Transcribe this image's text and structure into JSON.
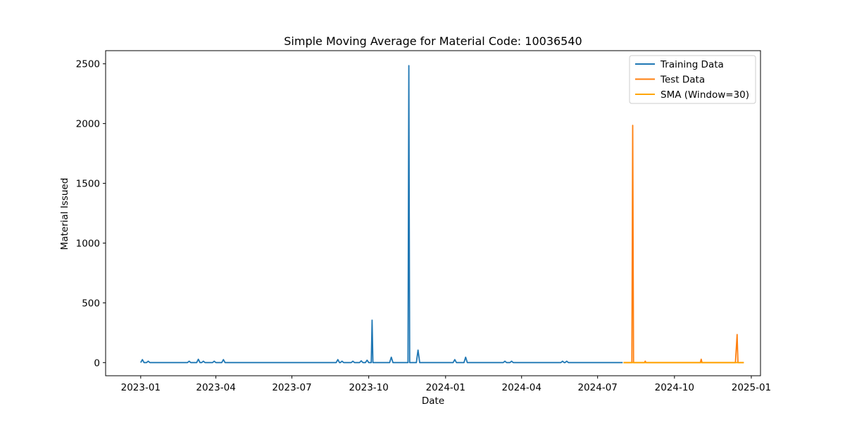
{
  "chart_data": {
    "type": "line",
    "title": "Simple Moving Average for Material Code: 10036540",
    "xlabel": "Date",
    "ylabel": "Material Issued",
    "xlim": [
      "2022-11-20",
      "2025-01-12"
    ],
    "ylim": [
      -110,
      2610
    ],
    "x_ticks": [
      "2023-01",
      "2023-04",
      "2023-07",
      "2023-10",
      "2024-01",
      "2024-04",
      "2024-07",
      "2024-10",
      "2025-01"
    ],
    "y_ticks": [
      0,
      500,
      1000,
      1500,
      2000,
      2500
    ],
    "grid": false,
    "legend": {
      "placement": "upper-right",
      "entries": [
        "Training Data",
        "Test Data",
        "SMA (Window=30)"
      ]
    },
    "series": [
      {
        "name": "Training Data",
        "color": "#1f77b4",
        "points": [
          [
            "2023-01-01",
            0
          ],
          [
            "2023-01-03",
            25
          ],
          [
            "2023-01-05",
            0
          ],
          [
            "2023-01-08",
            0
          ],
          [
            "2023-01-10",
            12
          ],
          [
            "2023-01-12",
            0
          ],
          [
            "2023-02-26",
            0
          ],
          [
            "2023-02-28",
            12
          ],
          [
            "2023-03-02",
            0
          ],
          [
            "2023-03-09",
            0
          ],
          [
            "2023-03-11",
            28
          ],
          [
            "2023-03-13",
            0
          ],
          [
            "2023-03-15",
            0
          ],
          [
            "2023-03-17",
            12
          ],
          [
            "2023-03-19",
            0
          ],
          [
            "2023-03-28",
            0
          ],
          [
            "2023-03-30",
            12
          ],
          [
            "2023-04-01",
            0
          ],
          [
            "2023-04-08",
            0
          ],
          [
            "2023-04-10",
            25
          ],
          [
            "2023-04-12",
            0
          ],
          [
            "2023-08-23",
            0
          ],
          [
            "2023-08-25",
            25
          ],
          [
            "2023-08-27",
            0
          ],
          [
            "2023-08-28",
            0
          ],
          [
            "2023-08-30",
            12
          ],
          [
            "2023-09-01",
            0
          ],
          [
            "2023-09-10",
            0
          ],
          [
            "2023-09-12",
            12
          ],
          [
            "2023-09-14",
            0
          ],
          [
            "2023-09-20",
            0
          ],
          [
            "2023-09-22",
            15
          ],
          [
            "2023-09-24",
            0
          ],
          [
            "2023-09-27",
            0
          ],
          [
            "2023-09-29",
            20
          ],
          [
            "2023-10-01",
            0
          ],
          [
            "2023-10-04",
            0
          ],
          [
            "2023-10-05",
            355
          ],
          [
            "2023-10-06",
            0
          ],
          [
            "2023-10-26",
            0
          ],
          [
            "2023-10-28",
            45
          ],
          [
            "2023-10-30",
            0
          ],
          [
            "2023-11-17",
            0
          ],
          [
            "2023-11-18",
            2485
          ],
          [
            "2023-11-19",
            0
          ],
          [
            "2023-11-27",
            0
          ],
          [
            "2023-11-29",
            105
          ],
          [
            "2023-12-01",
            0
          ],
          [
            "2024-01-10",
            0
          ],
          [
            "2024-01-12",
            25
          ],
          [
            "2024-01-14",
            0
          ],
          [
            "2024-01-23",
            0
          ],
          [
            "2024-01-25",
            45
          ],
          [
            "2024-01-27",
            0
          ],
          [
            "2024-03-10",
            0
          ],
          [
            "2024-03-12",
            12
          ],
          [
            "2024-03-14",
            0
          ],
          [
            "2024-03-18",
            0
          ],
          [
            "2024-03-20",
            12
          ],
          [
            "2024-03-22",
            0
          ],
          [
            "2024-05-18",
            0
          ],
          [
            "2024-05-20",
            12
          ],
          [
            "2024-05-22",
            0
          ],
          [
            "2024-05-23",
            0
          ],
          [
            "2024-05-25",
            12
          ],
          [
            "2024-05-27",
            0
          ],
          [
            "2024-07-31",
            0
          ]
        ]
      },
      {
        "name": "Test Data",
        "color": "#ff7f0e",
        "points": [
          [
            "2024-08-01",
            0
          ],
          [
            "2024-08-11",
            0
          ],
          [
            "2024-08-12",
            1985
          ],
          [
            "2024-08-13",
            0
          ],
          [
            "2024-08-26",
            0
          ],
          [
            "2024-08-27",
            12
          ],
          [
            "2024-08-28",
            0
          ],
          [
            "2024-11-01",
            0
          ],
          [
            "2024-11-02",
            28
          ],
          [
            "2024-11-03",
            0
          ],
          [
            "2024-12-13",
            0
          ],
          [
            "2024-12-15",
            235
          ],
          [
            "2024-12-16",
            0
          ],
          [
            "2024-12-23",
            0
          ]
        ]
      },
      {
        "name": "SMA (Window=30)",
        "color": "#ffa500",
        "points": [
          [
            "2024-08-01",
            0
          ],
          [
            "2024-12-23",
            0
          ]
        ]
      }
    ]
  }
}
